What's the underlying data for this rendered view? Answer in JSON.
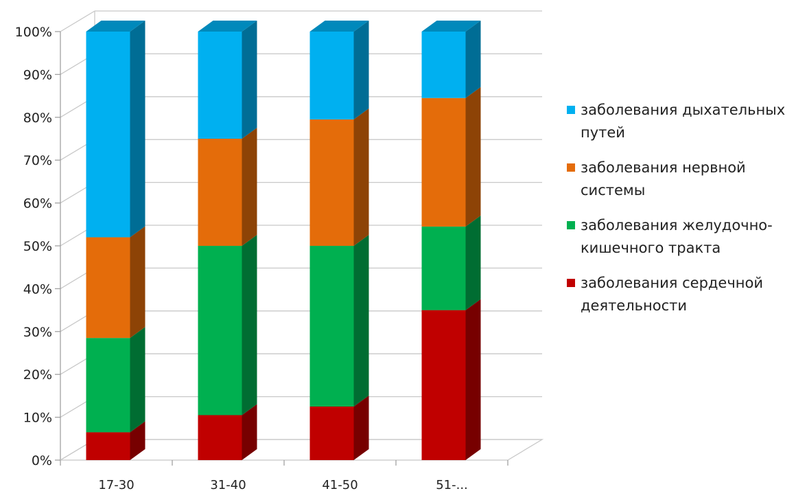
{
  "chart_data": {
    "type": "bar",
    "stacked": "percent",
    "style": "3d",
    "categories": [
      "17-30",
      "31-40",
      "41-50",
      "51-..."
    ],
    "y_ticks": [
      "0%",
      "10%",
      "20%",
      "30%",
      "40%",
      "50%",
      "60%",
      "70%",
      "80%",
      "90%",
      "100%"
    ],
    "ylim": [
      0,
      100
    ],
    "grid": true,
    "legend_position": "right",
    "series": [
      {
        "name": "заболевания сердечной деятельности",
        "color": "#c00000",
        "values": [
          6.5,
          10.5,
          12.5,
          35
        ]
      },
      {
        "name": "заболевания желудочно-кишечного тракта",
        "color": "#00b050",
        "values": [
          22,
          39.5,
          37.5,
          19.5
        ]
      },
      {
        "name": "заболевания нервной системы",
        "color": "#e46c0a",
        "values": [
          23.5,
          25,
          29.5,
          30
        ]
      },
      {
        "name": "заболевания дыхательных путей",
        "color": "#00b0f0",
        "values": [
          48,
          25,
          20.5,
          15.5
        ]
      }
    ]
  },
  "legend_items": [
    {
      "label": "заболевания дыхательных путей",
      "color": "#00b0f0"
    },
    {
      "label": "заболевания нервной системы",
      "color": "#e46c0a"
    },
    {
      "label": "заболевания желудочно-кишечного тракта",
      "color": "#00b050"
    },
    {
      "label": "заболевания сердечной деятельности",
      "color": "#c00000"
    }
  ]
}
